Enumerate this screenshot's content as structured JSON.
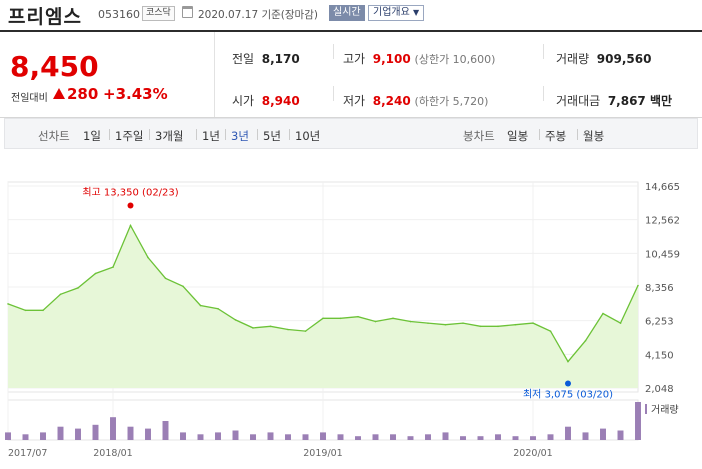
{
  "header": {
    "stock_name": "프리엠스",
    "stock_code": "053160",
    "market": "코스닥",
    "date_text": "2020.07.17 기준(장마감)",
    "realtime_label": "실시간",
    "company_info_label": "기업개요"
  },
  "price": {
    "current": "8,450",
    "change_label": "전일대비",
    "change": "280",
    "change_pct": "+3.43%",
    "direction": "up"
  },
  "stats": {
    "prev_close": {
      "label": "전일",
      "value": "8,170"
    },
    "high": {
      "label": "고가",
      "value": "9,100",
      "limit": "(상한가 10,600)"
    },
    "volume": {
      "label": "거래량",
      "value": "909,560"
    },
    "open": {
      "label": "시가",
      "value": "8,940"
    },
    "low": {
      "label": "저가",
      "value": "8,240",
      "limit": "(하한가 5,720)"
    },
    "amount": {
      "label": "거래대금",
      "value": "7,867 백만"
    }
  },
  "tabs": {
    "line_chart_label": "선차트",
    "periods": [
      "1일",
      "1주일",
      "3개월",
      "1년",
      "3년",
      "5년",
      "10년"
    ],
    "selected_period": "3년",
    "candle_chart_label": "봉차트",
    "candle_periods": [
      "일봉",
      "주봉",
      "월봉"
    ]
  },
  "chart_data": {
    "type": "area",
    "y_ticks": [
      "14,665",
      "12,562",
      "10,459",
      "8,356",
      "6,253",
      "4,150",
      "2,048"
    ],
    "y_tick_values": [
      14665,
      12562,
      10459,
      8356,
      6253,
      4150,
      2048
    ],
    "x_ticks": [
      "2017/07",
      "2018/01",
      "2019/01",
      "2020/01"
    ],
    "max_annotation": "최고 13,350 (02/23)",
    "min_annotation": "최저 3,075 (03/20)",
    "volume_label": "거래량",
    "ylim": [
      2048,
      14665
    ],
    "x": [
      "2017/07",
      "2017/08",
      "2017/09",
      "2017/10",
      "2017/11",
      "2017/12",
      "2018/01",
      "2018/02",
      "2018/03",
      "2018/04",
      "2018/05",
      "2018/06",
      "2018/07",
      "2018/08",
      "2018/09",
      "2018/10",
      "2018/11",
      "2018/12",
      "2019/01",
      "2019/02",
      "2019/03",
      "2019/04",
      "2019/05",
      "2019/06",
      "2019/07",
      "2019/08",
      "2019/09",
      "2019/10",
      "2019/11",
      "2019/12",
      "2020/01",
      "2020/02",
      "2020/03",
      "2020/04",
      "2020/05",
      "2020/06",
      "2020/07"
    ],
    "values": [
      7300,
      6900,
      6900,
      7900,
      8300,
      9200,
      9600,
      12200,
      10200,
      8900,
      8400,
      7200,
      7000,
      6300,
      5800,
      5900,
      5700,
      5600,
      6400,
      6400,
      6500,
      6200,
      6400,
      6200,
      6100,
      6000,
      6100,
      5900,
      5900,
      6000,
      6100,
      5600,
      3700,
      5000,
      6700,
      6100,
      8450
    ],
    "volume": [
      0.2,
      0.15,
      0.2,
      0.35,
      0.3,
      0.4,
      0.6,
      0.35,
      0.3,
      0.5,
      0.2,
      0.15,
      0.2,
      0.25,
      0.15,
      0.2,
      0.15,
      0.15,
      0.2,
      0.15,
      0.1,
      0.15,
      0.15,
      0.1,
      0.15,
      0.2,
      0.1,
      0.1,
      0.15,
      0.1,
      0.1,
      0.15,
      0.35,
      0.2,
      0.3,
      0.25,
      1.0
    ]
  },
  "colors": {
    "up": "#e00000",
    "selected_tab": "#2d56b3",
    "line": "#6cc237",
    "area": "#e7f7d8",
    "max_dot": "#e00000",
    "min_dot": "#0a5bd8",
    "volume_bar": "#9b7fb5"
  }
}
